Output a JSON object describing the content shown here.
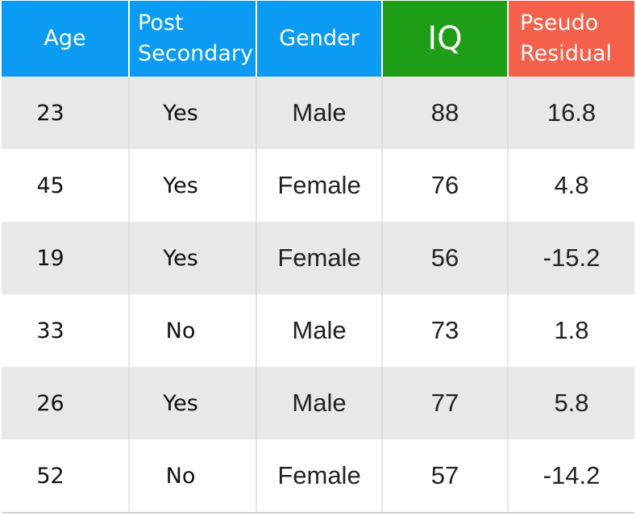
{
  "table": {
    "headers": {
      "age": "Age",
      "post_secondary": "Post\nSecondary",
      "gender": "Gender",
      "iq": "IQ",
      "pseudo_residual": "Pseudo\nResidual"
    },
    "header_colors": {
      "age": "#0b9bf2",
      "post_secondary": "#0b9bf2",
      "gender": "#0b9bf2",
      "iq": "#1e9e16",
      "pseudo_residual": "#f4604a"
    },
    "rows": [
      {
        "age": "23",
        "post_secondary": "Yes",
        "gender": "Male",
        "iq": "88",
        "pseudo_residual": "16.8"
      },
      {
        "age": "45",
        "post_secondary": "Yes",
        "gender": "Female",
        "iq": "76",
        "pseudo_residual": "4.8"
      },
      {
        "age": "19",
        "post_secondary": "Yes",
        "gender": "Female",
        "iq": "56",
        "pseudo_residual": "-15.2"
      },
      {
        "age": "33",
        "post_secondary": "No",
        "gender": "Male",
        "iq": "73",
        "pseudo_residual": "1.8"
      },
      {
        "age": "26",
        "post_secondary": "Yes",
        "gender": "Male",
        "iq": "77",
        "pseudo_residual": "5.8"
      },
      {
        "age": "52",
        "post_secondary": "No",
        "gender": "Female",
        "iq": "57",
        "pseudo_residual": "-14.2"
      }
    ]
  }
}
